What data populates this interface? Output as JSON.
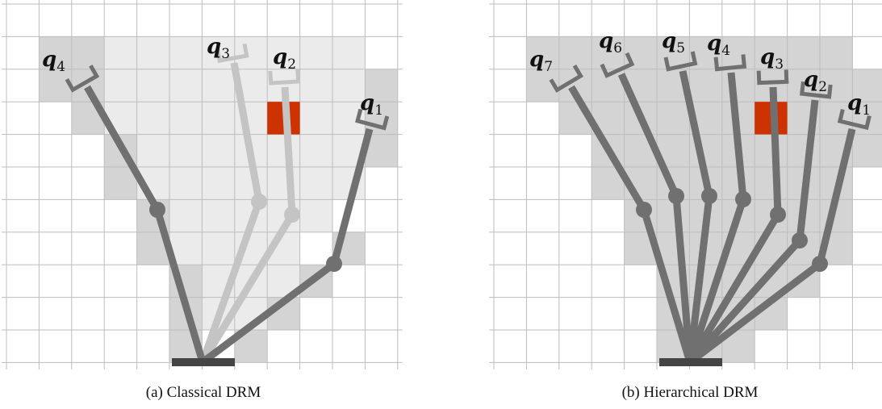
{
  "panels": [
    {
      "caption": "(a) Classical DRM",
      "labels": [
        {
          "symbol": "q",
          "subscript": "4"
        },
        {
          "symbol": "q",
          "subscript": "3"
        },
        {
          "symbol": "q",
          "subscript": "2"
        },
        {
          "symbol": "q",
          "subscript": "1"
        }
      ]
    },
    {
      "caption": "(b) Hierarchical DRM",
      "labels": [
        {
          "symbol": "q",
          "subscript": "7"
        },
        {
          "symbol": "q",
          "subscript": "6"
        },
        {
          "symbol": "q",
          "subscript": "5"
        },
        {
          "symbol": "q",
          "subscript": "4"
        },
        {
          "symbol": "q",
          "subscript": "3"
        },
        {
          "symbol": "q",
          "subscript": "2"
        },
        {
          "symbol": "q",
          "subscript": "1"
        }
      ]
    }
  ]
}
